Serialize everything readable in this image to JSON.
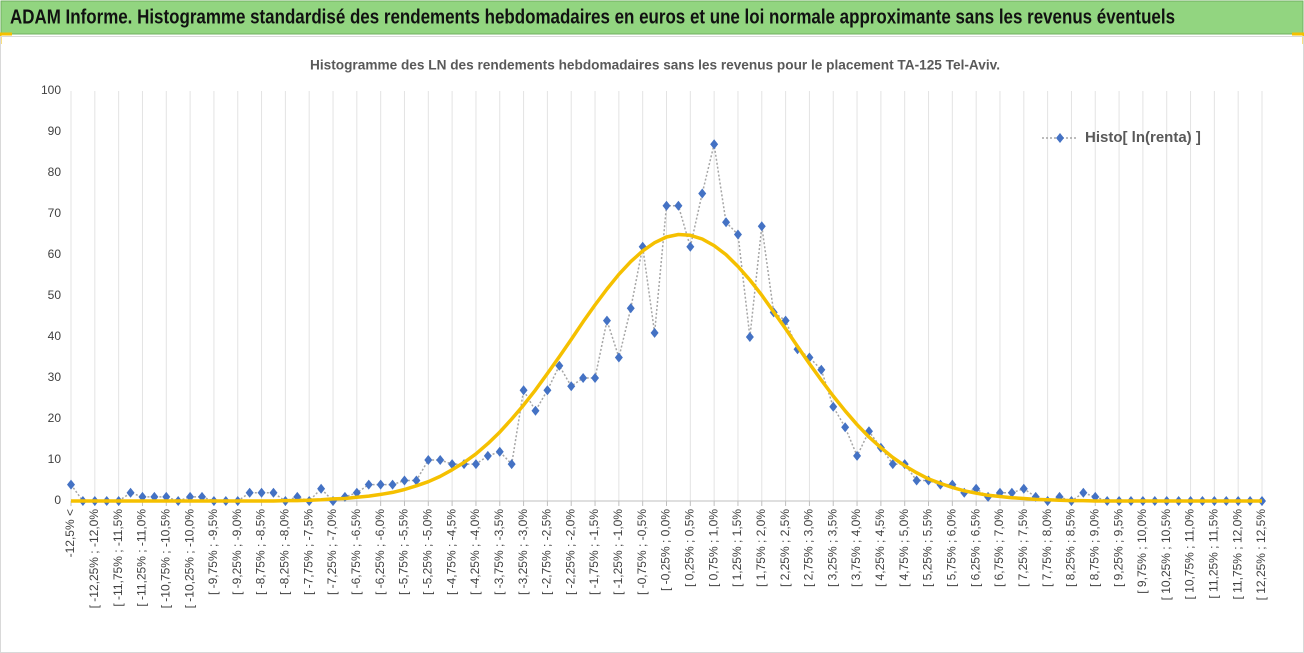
{
  "header": {
    "title": "ADAM Informe. Histogramme standardisé des rendements hebdomadaires en euros et une loi normale approximante sans les revenus éventuels"
  },
  "chart_data": {
    "type": "line",
    "title": "Histogramme des LN des rendements hebdomadaires sans les revenus pour le placement TA-125 Tel-Aviv.",
    "categories": [
      "-12,5% <",
      null,
      "[ -12,25% ; -12,0%",
      null,
      "[ -11,75% ; -11,5%",
      null,
      "[ -11,25% ; -11,0%",
      null,
      "[ -10,75% ; -10,5%",
      null,
      "[ -10,25% ; -10,0%",
      null,
      "[ -9,75% ; -9,5%",
      null,
      "[ -9,25% ; -9,0%",
      null,
      "[ -8,75% ; -8,5%",
      null,
      "[ -8,25% ; -8,0%",
      null,
      "[ -7,75% ; -7,5%",
      null,
      "[ -7,25% ; -7,0%",
      null,
      "[ -6,75% ; -6,5%",
      null,
      "[ -6,25% ; -6,0%",
      null,
      "[ -5,75% ; -5,5%",
      null,
      "[ -5,25% ; -5,0%",
      null,
      "[ -4,75% ; -4,5%",
      null,
      "[ -4,25% ; -4,0%",
      null,
      "[ -3,75% ; -3,5%",
      null,
      "[ -3,25% ; -3,0%",
      null,
      "[ -2,75% ; -2,5%",
      null,
      "[ -2,25% ; -2,0%",
      null,
      "[ -1,75% ; -1,5%",
      null,
      "[ -1,25% ; -1,0%",
      null,
      "[ -0,75% ; -0,5%",
      null,
      "[ -0,25% ; 0,0%",
      null,
      "[ 0,25% ; 0,5%",
      null,
      "[ 0,75% ; 1,0%",
      null,
      "[ 1,25% ; 1,5%",
      null,
      "[ 1,75% ; 2,0%",
      null,
      "[ 2,25% ; 2,5%",
      null,
      "[ 2,75% ; 3,0%",
      null,
      "[ 3,25% ; 3,5%",
      null,
      "[ 3,75% ; 4,0%",
      null,
      "[ 4,25% ; 4,5%",
      null,
      "[ 4,75% ; 5,0%",
      null,
      "[ 5,25% ; 5,5%",
      null,
      "[ 5,75% ; 6,0%",
      null,
      "[ 6,25% ; 6,5%",
      null,
      "[ 6,75% ; 7,0%",
      null,
      "[ 7,25% ; 7,5%",
      null,
      "[ 7,75% ; 8,0%",
      null,
      "[ 8,25% ; 8,5%",
      null,
      "[ 8,75% ; 9,0%",
      null,
      "[ 9,25% ; 9,5%",
      null,
      "[ 9,75% ; 10,0%",
      null,
      "[ 10,25% ; 10,5%",
      null,
      "[ 10,75% ; 11,0%",
      null,
      "[ 11,25% ; 11,5%",
      null,
      "[ 11,75% ; 12,0%",
      null,
      "[ 12,25% ; 12,5%"
    ],
    "series": [
      {
        "name": "Histo[ ln(renta) ]",
        "color": "#4472c4",
        "line_color": "#a6a6a6",
        "values": [
          4,
          0,
          0,
          0,
          0,
          2,
          1,
          1,
          1,
          0,
          1,
          1,
          0,
          0,
          0,
          2,
          2,
          2,
          0,
          1,
          0,
          3,
          0,
          1,
          2,
          4,
          4,
          4,
          5,
          5,
          10,
          10,
          9,
          9,
          9,
          11,
          12,
          9,
          27,
          22,
          27,
          33,
          28,
          30,
          30,
          44,
          35,
          47,
          62,
          41,
          72,
          72,
          62,
          75,
          87,
          68,
          65,
          40,
          67,
          46,
          44,
          37,
          35,
          32,
          23,
          18,
          11,
          17,
          13,
          9,
          9,
          5,
          5,
          4,
          4,
          2,
          3,
          1,
          2,
          2,
          3,
          1,
          0,
          1,
          0,
          2,
          1,
          0,
          0,
          0,
          0,
          0,
          0,
          0,
          0,
          0,
          0,
          0,
          0,
          0,
          0
        ]
      },
      {
        "color": "#f5c000",
        "values": [
          0,
          0,
          0,
          0,
          0,
          0,
          0,
          0,
          0,
          0,
          0,
          0,
          0,
          0,
          0,
          0,
          0,
          0,
          0.1,
          0.1,
          0.2,
          0.3,
          0.5,
          0.6,
          0.9,
          1.2,
          1.6,
          2.1,
          2.8,
          3.7,
          4.7,
          6.0,
          7.6,
          9.4,
          11.5,
          14.0,
          16.8,
          20.0,
          23.4,
          27.1,
          31.1,
          35.2,
          39.4,
          43.7,
          47.8,
          51.7,
          55.3,
          58.4,
          61.0,
          63.0,
          64.4,
          65.0,
          64.8,
          63.9,
          62.3,
          60.1,
          57.2,
          53.9,
          50.2,
          46.1,
          42.0,
          37.7,
          33.5,
          29.5,
          25.6,
          22.0,
          18.6,
          15.6,
          13.0,
          10.6,
          8.6,
          6.9,
          5.4,
          4.3,
          3.3,
          2.5,
          1.9,
          1.4,
          1.1,
          0.8,
          0.6,
          0.4,
          0.3,
          0.2,
          0.1,
          0.1,
          0,
          0,
          0,
          0,
          0,
          0,
          0,
          0,
          0,
          0,
          0,
          0,
          0,
          0,
          0
        ]
      }
    ],
    "ylim": [
      0,
      100
    ],
    "yticks": [
      0,
      10,
      20,
      30,
      40,
      50,
      60,
      70,
      80,
      90,
      100
    ],
    "grid": "x",
    "legend": "upper right"
  }
}
